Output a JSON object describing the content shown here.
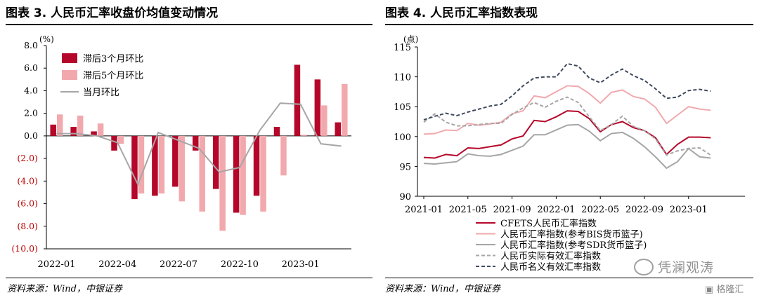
{
  "left": {
    "title": "图表 3. 人民币汇率收盘价均值变动情况",
    "source": "资料来源：Wind，中银证券",
    "chart_data": {
      "type": "bar",
      "unit_label": "(%)",
      "ylim": [
        -10,
        8
      ],
      "y_ticks": [
        "8.0",
        "6.0",
        "4.0",
        "2.0",
        "0.0",
        "(2.0)",
        "(4.0)",
        "(6.0)",
        "(8.0)",
        "(10.0)"
      ],
      "x_tick_labels": [
        "2022-01",
        "2022-04",
        "2022-07",
        "2022-10",
        "2023-01"
      ],
      "categories": [
        "2022-01",
        "2022-02",
        "2022-03",
        "2022-04",
        "2022-05",
        "2022-06",
        "2022-07",
        "2022-08",
        "2022-09",
        "2022-10",
        "2022-11",
        "2022-12",
        "2023-01",
        "2023-02",
        "2023-03"
      ],
      "series": [
        {
          "name": "滞后3个月环比",
          "kind": "bar",
          "color": "#b5072a",
          "values": [
            1.0,
            0.8,
            0.4,
            -1.3,
            -5.6,
            -5.3,
            -4.5,
            -1.3,
            -4.7,
            -6.8,
            -5.3,
            0.8,
            6.3,
            5.0,
            1.2
          ]
        },
        {
          "name": "滞后5个月环比",
          "kind": "bar",
          "color": "#f2a9ad",
          "values": [
            1.9,
            1.8,
            1.1,
            -0.7,
            -5.1,
            -5.1,
            -5.8,
            -6.7,
            -8.4,
            -7.0,
            -6.7,
            -3.5,
            0.1,
            2.7,
            4.6
          ]
        },
        {
          "name": "当月环比",
          "kind": "line",
          "color": "#a6a6a6",
          "values": [
            0.2,
            0.2,
            0.0,
            -0.6,
            -4.3,
            0.3,
            -0.4,
            -1.1,
            -3.2,
            -2.8,
            0.5,
            2.9,
            2.8,
            -0.7,
            -0.9
          ]
        }
      ]
    }
  },
  "right": {
    "title": "图表 4. 人民币汇率指数表现",
    "source": "资料来源：Wind，中银证券",
    "chart_data": {
      "type": "line",
      "unit_label": "(点)",
      "ylim": [
        90,
        115
      ],
      "y_ticks": [
        "115",
        "110",
        "105",
        "100",
        "95",
        "90"
      ],
      "x_tick_labels": [
        "2021-01",
        "2021-05",
        "2021-09",
        "2022-01",
        "2022-05",
        "2022-09",
        "2023-01"
      ],
      "x": [
        "2021-01",
        "2021-02",
        "2021-03",
        "2021-04",
        "2021-05",
        "2021-06",
        "2021-07",
        "2021-08",
        "2021-09",
        "2021-10",
        "2021-11",
        "2021-12",
        "2022-01",
        "2022-02",
        "2022-03",
        "2022-04",
        "2022-05",
        "2022-06",
        "2022-07",
        "2022-08",
        "2022-09",
        "2022-10",
        "2022-11",
        "2022-12",
        "2023-01",
        "2023-02",
        "2023-03"
      ],
      "series": [
        {
          "name": "CFETS人民币汇率指数",
          "color": "#b5072a",
          "dash": "",
          "values": [
            96.5,
            96.4,
            97.0,
            96.8,
            98.1,
            98.0,
            98.3,
            98.6,
            99.6,
            100.1,
            102.7,
            102.5,
            103.3,
            104.3,
            104.2,
            103.0,
            100.8,
            102.0,
            102.5,
            101.5,
            101.0,
            99.8,
            97.0,
            98.7,
            99.9,
            99.9,
            99.8
          ]
        },
        {
          "name": "人民币汇率指数(参考BIS货币篮子)",
          "color": "#f2a9ad",
          "dash": "",
          "values": [
            100.4,
            100.5,
            101.1,
            101.0,
            102.2,
            101.9,
            102.1,
            102.4,
            103.8,
            104.3,
            106.8,
            106.5,
            107.5,
            108.5,
            108.4,
            107.2,
            105.6,
            107.4,
            107.8,
            106.7,
            106.3,
            104.9,
            102.2,
            103.6,
            105.0,
            104.6,
            104.4
          ]
        },
        {
          "name": "人民币汇率指数(参考SDR货币篮子)",
          "color": "#a6a6a6",
          "dash": "",
          "values": [
            95.5,
            95.4,
            95.6,
            95.8,
            97.1,
            96.8,
            96.7,
            97.0,
            97.7,
            98.4,
            100.3,
            100.3,
            101.1,
            101.9,
            102.0,
            100.9,
            99.3,
            100.5,
            100.7,
            99.7,
            98.3,
            96.6,
            94.7,
            95.8,
            98.0,
            96.6,
            96.4
          ]
        },
        {
          "name": "人民币实际有效汇率指数",
          "color": "#a6a6a6",
          "dash": "5,3",
          "values": [
            102.4,
            103.8,
            102.4,
            101.8,
            101.8,
            102.0,
            102.2,
            102.2,
            103.7,
            104.8,
            105.7,
            104.9,
            105.9,
            106.6,
            105.7,
            103.3,
            101.0,
            102.0,
            103.4,
            101.7,
            101.0,
            99.6,
            96.9,
            97.6,
            98.0,
            98.1,
            96.9
          ]
        },
        {
          "name": "人民币名义有效汇率指数",
          "color": "#3f4a5e",
          "dash": "5,3",
          "values": [
            102.8,
            103.4,
            103.9,
            103.5,
            104.1,
            104.6,
            105.1,
            105.4,
            106.8,
            108.5,
            109.8,
            110.0,
            110.0,
            112.2,
            111.8,
            109.8,
            109.0,
            110.3,
            111.3,
            110.2,
            109.4,
            108.0,
            106.4,
            106.6,
            107.7,
            107.9,
            107.6
          ]
        }
      ]
    }
  },
  "watermark": {
    "text": "凭澜观涛",
    "icon": "wechat-icon"
  },
  "corner_logo": {
    "text": "格隆汇",
    "icon": "gelonghui-logo-icon"
  }
}
